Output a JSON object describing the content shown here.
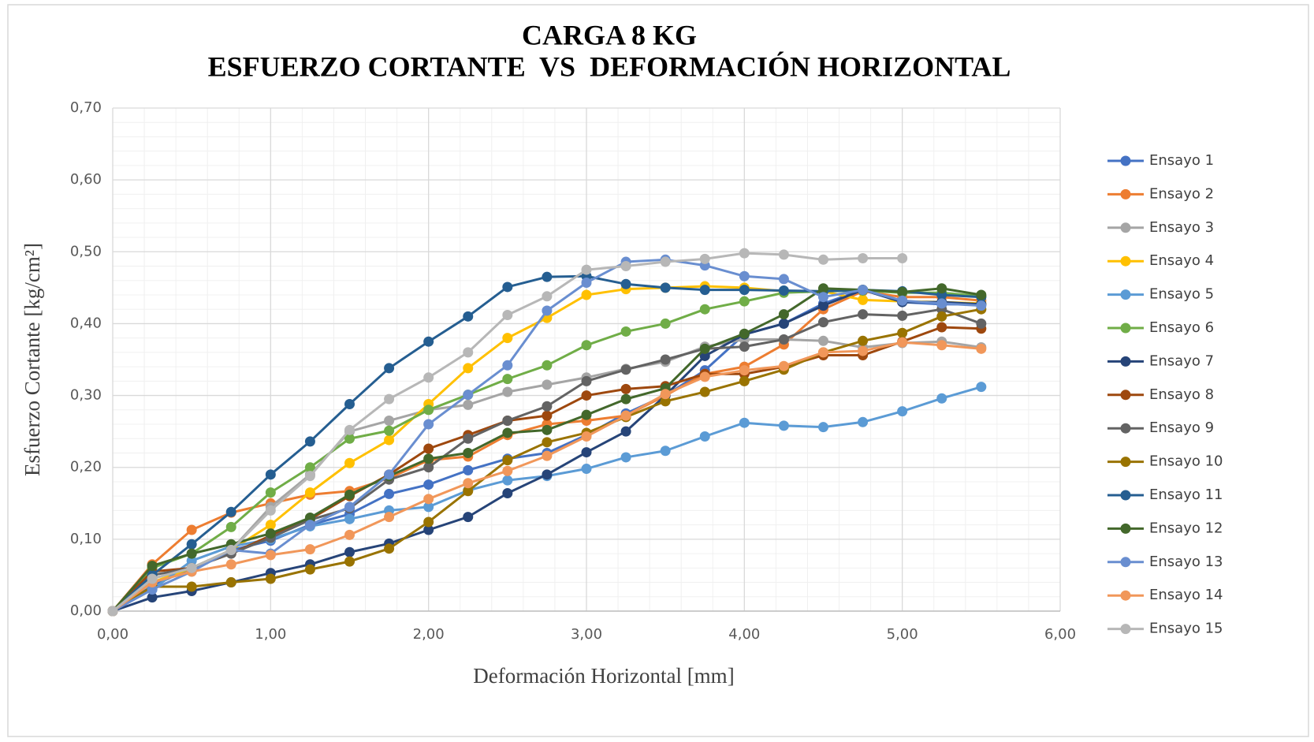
{
  "chart_data": {
    "type": "line",
    "title": [
      "CARGA 8 KG",
      "ESFUERZO CORTANTE  VS  DEFORMACIÓN HORIZONTAL"
    ],
    "x_label": "Deformación Horizontal [mm]",
    "y_label": "Esfuerzo Cortante [kg/cm²]",
    "x": [
      0,
      0.25,
      0.5,
      0.75,
      1,
      1.25,
      1.5,
      1.75,
      2,
      2.25,
      2.5,
      2.75,
      3,
      3.25,
      3.5,
      3.75,
      4,
      4.25,
      4.5,
      4.75,
      5,
      5.25,
      5.5
    ],
    "xlim": [
      0,
      6
    ],
    "xticks": [
      {
        "value": 0,
        "label": "0,00"
      },
      {
        "value": 1,
        "label": "1,00"
      },
      {
        "value": 2,
        "label": "2,00"
      },
      {
        "value": 3,
        "label": "3,00"
      },
      {
        "value": 4,
        "label": "4,00"
      },
      {
        "value": 5,
        "label": "5,00"
      },
      {
        "value": 6,
        "label": "6,00"
      }
    ],
    "ylim": [
      0,
      0.7
    ],
    "yticks": [
      {
        "value": 0,
        "label": "0,00"
      },
      {
        "value": 0.1,
        "label": "0,10"
      },
      {
        "value": 0.2,
        "label": "0,20"
      },
      {
        "value": 0.3,
        "label": "0,30"
      },
      {
        "value": 0.4,
        "label": "0,40"
      },
      {
        "value": 0.5,
        "label": "0,50"
      },
      {
        "value": 0.6,
        "label": "0,60"
      },
      {
        "value": 0.7,
        "label": "0,70"
      }
    ],
    "grid": true,
    "minor_grid": true,
    "legend": "right",
    "markers": true,
    "series": [
      {
        "name": "Ensayo 1",
        "color": "#4472C4",
        "values": [
          0,
          0.035,
          0.06,
          0.085,
          0.098,
          0.12,
          0.135,
          0.163,
          0.176,
          0.196,
          0.212,
          0.22,
          0.245,
          0.275,
          0.3,
          0.335,
          0.385,
          0.4,
          0.428,
          0.447,
          0.43,
          0.427,
          0.427
        ]
      },
      {
        "name": "Ensayo 2",
        "color": "#ED7D31",
        "values": [
          0,
          0.065,
          0.113,
          0.137,
          0.15,
          0.162,
          0.167,
          0.185,
          0.21,
          0.215,
          0.245,
          0.26,
          0.265,
          0.272,
          0.3,
          0.33,
          0.34,
          0.371,
          0.42,
          0.445,
          0.437,
          0.437,
          0.432
        ]
      },
      {
        "name": "Ensayo 3",
        "color": "#A5A5A5",
        "values": [
          0,
          0.045,
          0.06,
          0.085,
          0.145,
          0.19,
          0.25,
          0.265,
          0.28,
          0.287,
          0.305,
          0.315,
          0.325,
          0.337,
          0.347,
          0.368,
          0.378,
          0.378,
          0.376,
          0.367,
          0.373,
          0.375,
          0.367
        ]
      },
      {
        "name": "Ensayo 4",
        "color": "#FFC000",
        "values": [
          0,
          0.04,
          0.06,
          0.085,
          0.12,
          0.165,
          0.206,
          0.238,
          0.288,
          0.338,
          0.38,
          0.408,
          0.44,
          0.448,
          0.45,
          0.452,
          0.45,
          0.445,
          0.445,
          0.433,
          0.431,
          0.43,
          0.428
        ]
      },
      {
        "name": "Ensayo 5",
        "color": "#5B9BD5",
        "values": [
          0,
          0.03,
          0.07,
          0.09,
          0.1,
          0.118,
          0.128,
          0.14,
          0.145,
          0.168,
          0.182,
          0.188,
          0.198,
          0.214,
          0.223,
          0.243,
          0.262,
          0.258,
          0.256,
          0.263,
          0.278,
          0.296,
          0.312
        ]
      },
      {
        "name": "Ensayo 6",
        "color": "#70AD47",
        "values": [
          0,
          0.06,
          0.08,
          0.117,
          0.165,
          0.2,
          0.24,
          0.251,
          0.28,
          0.301,
          0.323,
          0.342,
          0.37,
          0.389,
          0.4,
          0.42,
          0.431,
          0.443,
          0.445,
          0.446,
          0.443,
          0.443,
          0.438
        ]
      },
      {
        "name": "Ensayo 7",
        "color": "#264478",
        "values": [
          0,
          0.019,
          0.028,
          0.04,
          0.053,
          0.065,
          0.082,
          0.094,
          0.113,
          0.131,
          0.164,
          0.19,
          0.221,
          0.25,
          0.3,
          0.355,
          0.385,
          0.4,
          0.425,
          0.447,
          0.43,
          0.43,
          0.427
        ]
      },
      {
        "name": "Ensayo 8",
        "color": "#9E480E",
        "values": [
          0,
          0.055,
          0.06,
          0.08,
          0.105,
          0.128,
          0.16,
          0.19,
          0.226,
          0.245,
          0.265,
          0.272,
          0.3,
          0.309,
          0.313,
          0.33,
          0.33,
          0.34,
          0.356,
          0.356,
          0.375,
          0.395,
          0.393
        ]
      },
      {
        "name": "Ensayo 9",
        "color": "#636363",
        "values": [
          0,
          0.05,
          0.06,
          0.08,
          0.102,
          0.127,
          0.143,
          0.183,
          0.2,
          0.24,
          0.265,
          0.285,
          0.32,
          0.336,
          0.35,
          0.365,
          0.368,
          0.378,
          0.402,
          0.413,
          0.411,
          0.42,
          0.4
        ]
      },
      {
        "name": "Ensayo 10",
        "color": "#997300",
        "values": [
          0,
          0.034,
          0.034,
          0.04,
          0.045,
          0.058,
          0.069,
          0.087,
          0.124,
          0.167,
          0.21,
          0.235,
          0.248,
          0.27,
          0.292,
          0.305,
          0.32,
          0.336,
          0.36,
          0.376,
          0.387,
          0.41,
          0.42
        ]
      },
      {
        "name": "Ensayo 11",
        "color": "#255E91",
        "values": [
          0,
          0.05,
          0.093,
          0.138,
          0.19,
          0.236,
          0.288,
          0.338,
          0.375,
          0.41,
          0.451,
          0.465,
          0.466,
          0.455,
          0.45,
          0.447,
          0.447,
          0.446,
          0.445,
          0.447,
          0.445,
          0.44,
          0.437
        ]
      },
      {
        "name": "Ensayo 12",
        "color": "#43682B",
        "values": [
          0,
          0.063,
          0.08,
          0.093,
          0.108,
          0.13,
          0.162,
          0.188,
          0.212,
          0.22,
          0.248,
          0.252,
          0.273,
          0.295,
          0.31,
          0.365,
          0.386,
          0.413,
          0.449,
          0.447,
          0.444,
          0.449,
          0.44
        ]
      },
      {
        "name": "Ensayo 13",
        "color": "#698ED0",
        "values": [
          0,
          0.03,
          0.055,
          0.085,
          0.08,
          0.12,
          0.145,
          0.19,
          0.26,
          0.301,
          0.342,
          0.418,
          0.457,
          0.486,
          0.489,
          0.481,
          0.466,
          0.462,
          0.437,
          0.447,
          0.432,
          0.428,
          0.425
        ]
      },
      {
        "name": "Ensayo 14",
        "color": "#F1975A",
        "values": [
          0,
          0.04,
          0.055,
          0.065,
          0.078,
          0.086,
          0.106,
          0.131,
          0.156,
          0.178,
          0.195,
          0.216,
          0.243,
          0.272,
          0.302,
          0.326,
          0.335,
          0.341,
          0.36,
          0.362,
          0.374,
          0.37,
          0.365
        ]
      },
      {
        "name": "Ensayo 15",
        "color": "#B7B7B7",
        "values": [
          0,
          0.045,
          0.06,
          0.085,
          0.14,
          0.188,
          0.252,
          0.295,
          0.325,
          0.36,
          0.412,
          0.438,
          0.475,
          0.48,
          0.486,
          0.49,
          0.498,
          0.496,
          0.489,
          0.491,
          0.491,
          null,
          null
        ]
      }
    ]
  }
}
